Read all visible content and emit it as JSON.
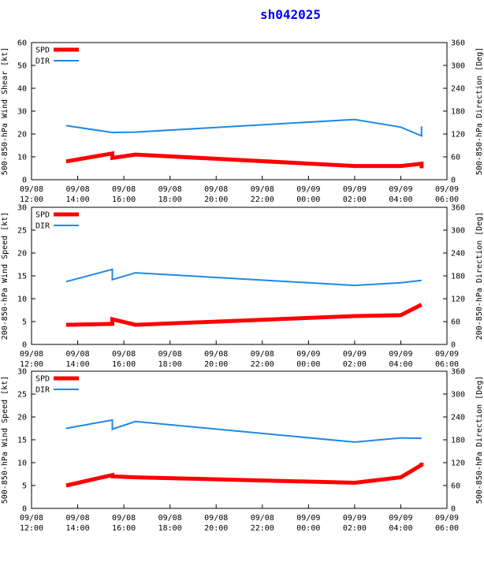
{
  "title": "sh042025",
  "colors": {
    "spd": "#ff0000",
    "dir": "#1e88e5",
    "axis": "#000000"
  },
  "chart_data": [
    {
      "type": "line",
      "title": "sh042025",
      "ylabel": "500-850-hPa Wind Shear [kt]",
      "y2label": "500-850-hPa Direction [Deg]",
      "ylim": [
        0,
        60
      ],
      "yticks": [
        "0",
        "10",
        "20",
        "30",
        "40",
        "50",
        "60"
      ],
      "y2lim": [
        0,
        360
      ],
      "y2ticks": [
        "0",
        "60",
        "120",
        "180",
        "240",
        "300",
        "360"
      ],
      "xlim": [
        0,
        18
      ],
      "xticks": [
        {
          "x": 0,
          "date": "09/08",
          "time": "12:00"
        },
        {
          "x": 2,
          "date": "09/08",
          "time": "14:00"
        },
        {
          "x": 4,
          "date": "09/08",
          "time": "16:00"
        },
        {
          "x": 6,
          "date": "09/08",
          "time": "18:00"
        },
        {
          "x": 8,
          "date": "09/08",
          "time": "20:00"
        },
        {
          "x": 10,
          "date": "09/08",
          "time": "22:00"
        },
        {
          "x": 12,
          "date": "09/09",
          "time": "00:00"
        },
        {
          "x": 14,
          "date": "09/09",
          "time": "02:00"
        },
        {
          "x": 16,
          "date": "09/09",
          "time": "04:00"
        },
        {
          "x": 18,
          "date": "09/09",
          "time": "06:00"
        }
      ],
      "legend": [
        "SPD",
        "DIR"
      ],
      "series": [
        {
          "name": "SPD",
          "axis": "left",
          "x": [
            1.5,
            3.5,
            3.5,
            4.5,
            14,
            16,
            16.9,
            16.9
          ],
          "values": [
            8,
            11.5,
            9.5,
            11,
            6,
            6,
            7,
            5
          ]
        },
        {
          "name": "DIR",
          "axis": "right",
          "x": [
            1.5,
            3.5,
            4.5,
            14,
            16,
            16.9,
            16.9
          ],
          "values": [
            142,
            124,
            125,
            158,
            138,
            115,
            140
          ]
        }
      ]
    },
    {
      "type": "line",
      "ylabel": "200-850-hPa Wind Speed [kt]",
      "y2label": "200-850-hPa Direction [Deg]",
      "ylim": [
        0,
        30
      ],
      "yticks": [
        "0",
        "5",
        "10",
        "15",
        "20",
        "25",
        "30"
      ],
      "y2lim": [
        0,
        360
      ],
      "y2ticks": [
        "0",
        "60",
        "120",
        "180",
        "240",
        "300",
        "360"
      ],
      "xlim": [
        0,
        18
      ],
      "xticks": [
        {
          "x": 0,
          "date": "09/08",
          "time": "12:00"
        },
        {
          "x": 2,
          "date": "09/08",
          "time": "14:00"
        },
        {
          "x": 4,
          "date": "09/08",
          "time": "16:00"
        },
        {
          "x": 6,
          "date": "09/08",
          "time": "18:00"
        },
        {
          "x": 8,
          "date": "09/08",
          "time": "20:00"
        },
        {
          "x": 10,
          "date": "09/08",
          "time": "22:00"
        },
        {
          "x": 12,
          "date": "09/09",
          "time": "00:00"
        },
        {
          "x": 14,
          "date": "09/09",
          "time": "02:00"
        },
        {
          "x": 16,
          "date": "09/09",
          "time": "04:00"
        },
        {
          "x": 18,
          "date": "09/09",
          "time": "06:00"
        }
      ],
      "legend": [
        "SPD",
        "DIR"
      ],
      "series": [
        {
          "name": "SPD",
          "axis": "left",
          "x": [
            1.5,
            3.5,
            3.5,
            4.5,
            14,
            16,
            16.9
          ],
          "values": [
            4.3,
            4.5,
            5.5,
            4.3,
            6.2,
            6.4,
            8.7
          ]
        },
        {
          "name": "DIR",
          "axis": "right",
          "x": [
            1.5,
            3.5,
            3.5,
            4.5,
            14,
            16,
            16.9
          ],
          "values": [
            165,
            197,
            170,
            188,
            155,
            162,
            168
          ]
        }
      ]
    },
    {
      "type": "line",
      "ylabel": "500-850-hPa Wind Speed [kt]",
      "y2label": "500-850-hPa Direction [Deg]",
      "ylim": [
        0,
        30
      ],
      "yticks": [
        "0",
        "5",
        "10",
        "15",
        "20",
        "25",
        "30"
      ],
      "y2lim": [
        0,
        360
      ],
      "y2ticks": [
        "0",
        "60",
        "120",
        "180",
        "240",
        "300",
        "360"
      ],
      "xlim": [
        0,
        18
      ],
      "xticks": [
        {
          "x": 0,
          "date": "09/08",
          "time": "12:00"
        },
        {
          "x": 2,
          "date": "09/08",
          "time": "14:00"
        },
        {
          "x": 4,
          "date": "09/08",
          "time": "16:00"
        },
        {
          "x": 6,
          "date": "09/08",
          "time": "18:00"
        },
        {
          "x": 8,
          "date": "09/08",
          "time": "20:00"
        },
        {
          "x": 10,
          "date": "09/08",
          "time": "22:00"
        },
        {
          "x": 12,
          "date": "09/09",
          "time": "00:00"
        },
        {
          "x": 14,
          "date": "09/09",
          "time": "02:00"
        },
        {
          "x": 16,
          "date": "09/09",
          "time": "04:00"
        },
        {
          "x": 18,
          "date": "09/09",
          "time": "06:00"
        }
      ],
      "legend": [
        "SPD",
        "DIR"
      ],
      "series": [
        {
          "name": "SPD",
          "axis": "left",
          "x": [
            1.5,
            3.5,
            3.5,
            4.5,
            14,
            16,
            16.9,
            16.9
          ],
          "values": [
            5,
            7.3,
            7,
            6.8,
            5.6,
            6.8,
            9.5,
            10
          ]
        },
        {
          "name": "DIR",
          "axis": "right",
          "x": [
            1.5,
            3.5,
            3.5,
            4.5,
            14,
            16,
            16.9
          ],
          "values": [
            210,
            232,
            208,
            228,
            174,
            185,
            184
          ]
        }
      ]
    }
  ]
}
